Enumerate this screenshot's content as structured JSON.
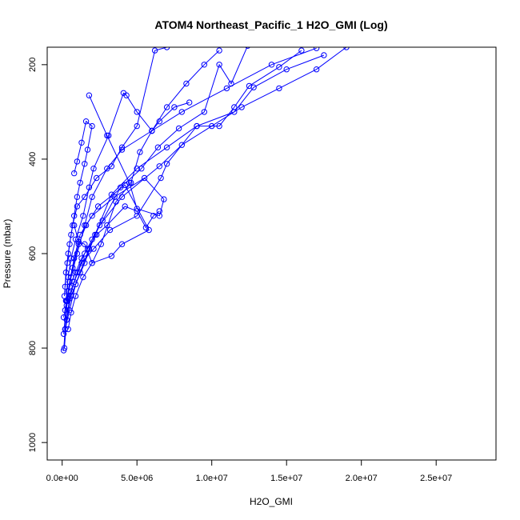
{
  "chart_data": {
    "type": "line",
    "title": "ATOM4 Northeast_Pacific_1 H2O_GMI (Log)",
    "xlabel": "H2O_GMI",
    "ylabel": "Pressure (mbar)",
    "xlim": [
      -1000000,
      29000000
    ],
    "ylim": [
      1037,
      163
    ],
    "y_reversed": true,
    "x_ticks": [
      0,
      5000000,
      10000000,
      15000000,
      20000000,
      25000000
    ],
    "x_tick_labels": [
      "0.0e+00",
      "5.0e+06",
      "1.0e+07",
      "1.5e+07",
      "2.0e+07",
      "2.5e+07"
    ],
    "y_ticks": [
      200,
      400,
      600,
      800,
      1000
    ],
    "y_tick_labels": [
      "200",
      "400",
      "600",
      "800",
      "1000"
    ],
    "grid": false,
    "legend": "none",
    "color": "#0000ff",
    "marker": "open-circle",
    "series": [
      {
        "points": [
          [
            100000,
            805
          ],
          [
            200000,
            760
          ],
          [
            350000,
            700
          ],
          [
            600000,
            650
          ],
          [
            1000000,
            600
          ],
          [
            1500000,
            540
          ],
          [
            2000000,
            480
          ],
          [
            3000000,
            420
          ],
          [
            4000000,
            380
          ],
          [
            6000000,
            340
          ],
          [
            8000000,
            300
          ],
          [
            11000000,
            250
          ],
          [
            14000000,
            200
          ],
          [
            17000000,
            165
          ]
        ]
      },
      {
        "points": [
          [
            150000,
            800
          ],
          [
            300000,
            740
          ],
          [
            600000,
            690
          ],
          [
            1200000,
            640
          ],
          [
            1800000,
            590
          ],
          [
            2500000,
            540
          ],
          [
            4000000,
            480
          ],
          [
            6500000,
            415
          ],
          [
            8000000,
            370
          ],
          [
            10000000,
            330
          ],
          [
            12000000,
            290
          ],
          [
            14500000,
            250
          ],
          [
            17000000,
            210
          ],
          [
            19000000,
            163
          ]
        ]
      },
      {
        "points": [
          [
            200000,
            760
          ],
          [
            500000,
            720
          ],
          [
            900000,
            665
          ],
          [
            1500000,
            620
          ],
          [
            2200000,
            560
          ],
          [
            3300000,
            475
          ],
          [
            5000000,
            420
          ],
          [
            7000000,
            375
          ],
          [
            9000000,
            330
          ],
          [
            11500000,
            300
          ],
          [
            12800000,
            248
          ],
          [
            15000000,
            210
          ],
          [
            17500000,
            180
          ]
        ]
      },
      {
        "points": [
          [
            100000,
            770
          ],
          [
            300000,
            700
          ],
          [
            500000,
            660
          ],
          [
            800000,
            610
          ],
          [
            1200000,
            560
          ],
          [
            2000000,
            520
          ],
          [
            3500000,
            480
          ],
          [
            5500000,
            440
          ],
          [
            6800000,
            485
          ],
          [
            6500000,
            520
          ],
          [
            5000000,
            505
          ],
          [
            4500000,
            450
          ],
          [
            3000000,
            350
          ],
          [
            1800000,
            265
          ]
        ]
      },
      {
        "points": [
          [
            200000,
            720
          ],
          [
            400000,
            680
          ],
          [
            700000,
            630
          ],
          [
            1100000,
            580
          ],
          [
            1600000,
            540
          ],
          [
            2400000,
            500
          ],
          [
            4200000,
            455
          ],
          [
            5800000,
            550
          ],
          [
            4000000,
            580
          ],
          [
            3300000,
            605
          ],
          [
            2000000,
            620
          ],
          [
            1500000,
            580
          ],
          [
            1100000,
            575
          ],
          [
            800000,
            540
          ]
        ]
      },
      {
        "points": [
          [
            300000,
            740
          ],
          [
            500000,
            695
          ],
          [
            800000,
            660
          ],
          [
            1300000,
            620
          ],
          [
            2100000,
            590
          ],
          [
            3200000,
            550
          ],
          [
            5000000,
            520
          ],
          [
            6600000,
            440
          ],
          [
            7000000,
            410
          ],
          [
            9000000,
            330
          ],
          [
            10500000,
            330
          ],
          [
            11500000,
            290
          ],
          [
            12500000,
            245
          ],
          [
            14500000,
            205
          ],
          [
            16000000,
            170
          ]
        ]
      },
      {
        "points": [
          [
            250000,
            700
          ],
          [
            400000,
            650
          ],
          [
            600000,
            610
          ],
          [
            900000,
            570
          ],
          [
            1400000,
            520
          ],
          [
            1800000,
            460
          ],
          [
            2100000,
            420
          ],
          [
            3100000,
            350
          ],
          [
            4100000,
            260
          ],
          [
            4300000,
            265
          ],
          [
            5000000,
            300
          ],
          [
            6000000,
            340
          ],
          [
            6500000,
            320
          ],
          [
            7500000,
            290
          ],
          [
            8500000,
            280
          ]
        ]
      },
      {
        "points": [
          [
            150000,
            690
          ],
          [
            250000,
            640
          ],
          [
            400000,
            600
          ],
          [
            600000,
            560
          ],
          [
            800000,
            520
          ],
          [
            1000000,
            480
          ],
          [
            1200000,
            450
          ],
          [
            1500000,
            410
          ],
          [
            1700000,
            380
          ],
          [
            2000000,
            330
          ],
          [
            1600000,
            320
          ],
          [
            1300000,
            365
          ],
          [
            1000000,
            405
          ],
          [
            800000,
            430
          ]
        ]
      },
      {
        "points": [
          [
            100000,
            735
          ],
          [
            300000,
            700
          ],
          [
            500000,
            670
          ],
          [
            900000,
            640
          ],
          [
            1300000,
            610
          ],
          [
            1700000,
            590
          ],
          [
            2300000,
            560
          ],
          [
            3000000,
            540
          ],
          [
            4200000,
            500
          ],
          [
            5000000,
            510
          ],
          [
            5600000,
            545
          ],
          [
            6100000,
            520
          ],
          [
            6500000,
            510
          ]
        ]
      },
      {
        "points": [
          [
            400000,
            760
          ],
          [
            600000,
            725
          ],
          [
            900000,
            690
          ],
          [
            1400000,
            650
          ],
          [
            2000000,
            620
          ],
          [
            2600000,
            580
          ],
          [
            3600000,
            490
          ],
          [
            4600000,
            450
          ],
          [
            5200000,
            385
          ],
          [
            6000000,
            340
          ],
          [
            7000000,
            290
          ],
          [
            8300000,
            240
          ],
          [
            9500000,
            200
          ],
          [
            10500000,
            170
          ]
        ]
      },
      {
        "points": [
          [
            200000,
            670
          ],
          [
            350000,
            620
          ],
          [
            500000,
            580
          ],
          [
            700000,
            540
          ],
          [
            1000000,
            500
          ],
          [
            1500000,
            480
          ],
          [
            2300000,
            440
          ],
          [
            3300000,
            415
          ],
          [
            4000000,
            375
          ],
          [
            5000000,
            330
          ],
          [
            6200000,
            170
          ],
          [
            7000000,
            163
          ]
        ]
      },
      {
        "points": [
          [
            300000,
            710
          ],
          [
            600000,
            680
          ],
          [
            1000000,
            640
          ],
          [
            1500000,
            600
          ],
          [
            2000000,
            570
          ],
          [
            2700000,
            530
          ],
          [
            3900000,
            460
          ],
          [
            5300000,
            420
          ],
          [
            6400000,
            375
          ],
          [
            7800000,
            335
          ],
          [
            9500000,
            300
          ],
          [
            10500000,
            200
          ],
          [
            11300000,
            240
          ],
          [
            12400000,
            160
          ]
        ]
      }
    ]
  }
}
